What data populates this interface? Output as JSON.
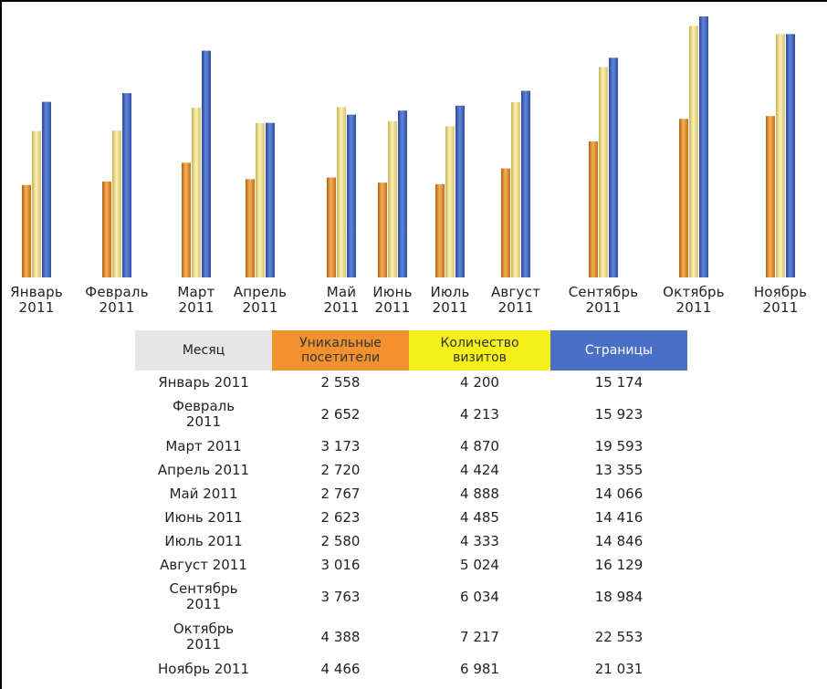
{
  "colors": {
    "unique": "#e8882a",
    "visits": "#ede08a",
    "pages": "#3d64c0",
    "header_month_bg": "#e6e6e6",
    "header_unique_bg": "#f2912e",
    "header_visits_bg": "#f5ef1a",
    "header_pages_bg": "#4a6fc7"
  },
  "chart_data": {
    "type": "bar",
    "categories": [
      [
        "Январь",
        "2011"
      ],
      [
        "Февраль",
        "2011"
      ],
      [
        "Март",
        "2011"
      ],
      [
        "Апрель",
        "2011"
      ],
      [
        "Май",
        "2011"
      ],
      [
        "Июнь",
        "2011"
      ],
      [
        "Июль",
        "2011"
      ],
      [
        "Август",
        "2011"
      ],
      [
        "Сентябрь",
        "2011"
      ],
      [
        "Октябрь",
        "2011"
      ],
      [
        "Ноябрь",
        "2011"
      ]
    ],
    "series": [
      {
        "key": "unique",
        "values": [
          2558,
          2652,
          3173,
          2720,
          2767,
          2623,
          2580,
          3016,
          3763,
          4388,
          4466
        ]
      },
      {
        "key": "visits",
        "values": [
          4200,
          4213,
          4870,
          4424,
          4888,
          4485,
          4333,
          5024,
          6034,
          7217,
          6981
        ]
      },
      {
        "key": "pages",
        "values": [
          15174,
          15923,
          19593,
          13355,
          14066,
          14416,
          14846,
          16129,
          18984,
          22553,
          21031
        ]
      }
    ],
    "axis_scale_note": "bars drawn without axes; per-series scaling as in original",
    "legend": "none",
    "grid": false
  },
  "table": {
    "headers": {
      "month": "Месяц",
      "unique": [
        "Уникальные",
        "посетители"
      ],
      "visits": [
        "Количество",
        "визитов"
      ],
      "pages": "Страницы"
    },
    "rows": [
      {
        "month": [
          "Январь 2011"
        ],
        "unique": "2 558",
        "visits": "4 200",
        "pages": "15 174"
      },
      {
        "month": [
          "Февраль",
          "2011"
        ],
        "unique": "2 652",
        "visits": "4 213",
        "pages": "15 923"
      },
      {
        "month": [
          "Март 2011"
        ],
        "unique": "3 173",
        "visits": "4 870",
        "pages": "19 593"
      },
      {
        "month": [
          "Апрель 2011"
        ],
        "unique": "2 720",
        "visits": "4 424",
        "pages": "13 355"
      },
      {
        "month": [
          "Май 2011"
        ],
        "unique": "2 767",
        "visits": "4 888",
        "pages": "14 066"
      },
      {
        "month": [
          "Июнь 2011"
        ],
        "unique": "2 623",
        "visits": "4 485",
        "pages": "14 416"
      },
      {
        "month": [
          "Июль 2011"
        ],
        "unique": "2 580",
        "visits": "4 333",
        "pages": "14 846"
      },
      {
        "month": [
          "Август 2011"
        ],
        "unique": "3 016",
        "visits": "5 024",
        "pages": "16 129"
      },
      {
        "month": [
          "Сентябрь",
          "2011"
        ],
        "unique": "3 763",
        "visits": "6 034",
        "pages": "18 984"
      },
      {
        "month": [
          "Октябрь",
          "2011"
        ],
        "unique": "4 388",
        "visits": "7 217",
        "pages": "22 553"
      },
      {
        "month": [
          "Ноябрь 2011"
        ],
        "unique": "4 466",
        "visits": "6 981",
        "pages": "21 031"
      }
    ]
  }
}
